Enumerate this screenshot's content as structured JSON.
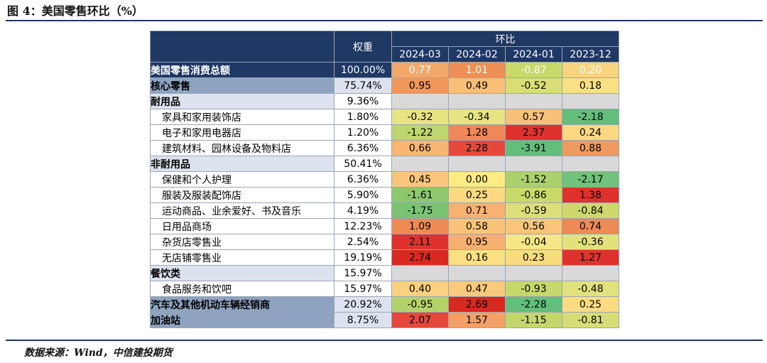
{
  "figure": {
    "title": "图 4：美国零售环比（%）",
    "source": "数据来源：Wind，中信建投期货"
  },
  "chart_data": {
    "type": "table",
    "title": "美国零售环比（%）",
    "weight_header": "权重",
    "group_header": "环比",
    "columns": [
      "2024-03",
      "2024-02",
      "2024-01",
      "2023-12"
    ],
    "rows": [
      {
        "label": "美国零售消费总额",
        "weight": "100.00%",
        "level": 0,
        "values": [
          "0.77",
          "1.01",
          "-0.87",
          "0.20"
        ],
        "colors": [
          "#f2a86b",
          "#ee8f55",
          "#c9d96a",
          "#f7d47e"
        ]
      },
      {
        "label": "核心零售",
        "weight": "75.74%",
        "level": 1,
        "values": [
          "0.95",
          "0.49",
          "-0.52",
          "0.18"
        ],
        "colors": [
          "#f0975b",
          "#f9bf76",
          "#d8de73",
          "#fbe083"
        ]
      },
      {
        "label": "耐用品",
        "weight": "9.36%",
        "level": 2,
        "values": [
          "",
          "",
          "",
          ""
        ],
        "colors": [
          "",
          "",
          "",
          ""
        ]
      },
      {
        "label": "家具和家用装饰店",
        "weight": "1.80%",
        "level": 3,
        "values": [
          "-0.32",
          "-0.34",
          "0.57",
          "-2.18"
        ],
        "colors": [
          "#e8e483",
          "#e7e483",
          "#f7c17a",
          "#63be7b"
        ]
      },
      {
        "label": "电子和家用电器店",
        "weight": "1.20%",
        "level": 3,
        "values": [
          "-1.22",
          "1.28",
          "2.37",
          "0.24"
        ],
        "colors": [
          "#bdd66f",
          "#ef8758",
          "#e0322c",
          "#fbd882"
        ]
      },
      {
        "label": "建筑材料、园林设备及物料店",
        "weight": "6.36%",
        "level": 3,
        "values": [
          "0.66",
          "2.28",
          "-3.91",
          "0.88"
        ],
        "colors": [
          "#f8b571",
          "#e5483b",
          "#63be7b",
          "#ef9b60"
        ]
      },
      {
        "label": "非耐用品",
        "weight": "50.41%",
        "level": 2,
        "values": [
          "",
          "",
          "",
          ""
        ],
        "colors": [
          "",
          "",
          "",
          ""
        ]
      },
      {
        "label": "保健和个人护理",
        "weight": "6.36%",
        "level": 3,
        "values": [
          "0.45",
          "0.00",
          "-1.52",
          "-2.17"
        ],
        "colors": [
          "#f9c57a",
          "#fdeb84",
          "#abd16f",
          "#71c27a"
        ]
      },
      {
        "label": "服装及服装配饰店",
        "weight": "5.90%",
        "level": 3,
        "values": [
          "-1.61",
          "0.25",
          "-0.86",
          "1.38"
        ],
        "colors": [
          "#8ec86e",
          "#fbd980",
          "#c9d96a",
          "#e0322c"
        ]
      },
      {
        "label": "运动商品、业余爱好、书及音乐",
        "weight": "4.19%",
        "level": 3,
        "values": [
          "-1.75",
          "0.71",
          "-0.59",
          "-0.84"
        ],
        "colors": [
          "#7ac372",
          "#f7b170",
          "#dce079",
          "#cdd96c"
        ]
      },
      {
        "label": "日用品商场",
        "weight": "12.23%",
        "level": 3,
        "values": [
          "1.09",
          "0.58",
          "0.56",
          "0.74"
        ],
        "colors": [
          "#ef8a55",
          "#f8c479",
          "#f8c57a",
          "#ee8a56"
        ]
      },
      {
        "label": "杂货店零售业",
        "weight": "2.54%",
        "level": 3,
        "values": [
          "2.11",
          "0.95",
          "-0.04",
          "-0.36"
        ],
        "colors": [
          "#e0322c",
          "#f6b06d",
          "#f5e884",
          "#e2e27c"
        ]
      },
      {
        "label": "无店铺零售业",
        "weight": "19.19%",
        "level": 3,
        "values": [
          "2.74",
          "0.16",
          "0.23",
          "1.27"
        ],
        "colors": [
          "#d9281f",
          "#fcdf82",
          "#f9dc80",
          "#e0322c"
        ]
      },
      {
        "label": "餐饮类",
        "weight": "15.97%",
        "level": 2,
        "values": [
          "",
          "",
          "",
          ""
        ],
        "colors": [
          "",
          "",
          "",
          ""
        ]
      },
      {
        "label": "食品服务和饮吧",
        "weight": "15.97%",
        "level": 3,
        "values": [
          "0.40",
          "0.47",
          "-0.93",
          "-0.48"
        ],
        "colors": [
          "#fad17e",
          "#f9ca7b",
          "#c7d86b",
          "#e2e27c"
        ]
      },
      {
        "label": "汽车及其他机动车辆经销商",
        "weight": "20.92%",
        "level": 1,
        "values": [
          "-0.95",
          "2.69",
          "-2.28",
          "0.25"
        ],
        "colors": [
          "#b4d26b",
          "#d9281f",
          "#63be7b",
          "#fbdc82"
        ]
      },
      {
        "label": "加油站",
        "weight": "8.75%",
        "level": 1,
        "values": [
          "2.07",
          "1.57",
          "-1.15",
          "-0.81"
        ],
        "colors": [
          "#e5483b",
          "#f4a065",
          "#c4d76b",
          "#d6dd74"
        ]
      }
    ]
  }
}
